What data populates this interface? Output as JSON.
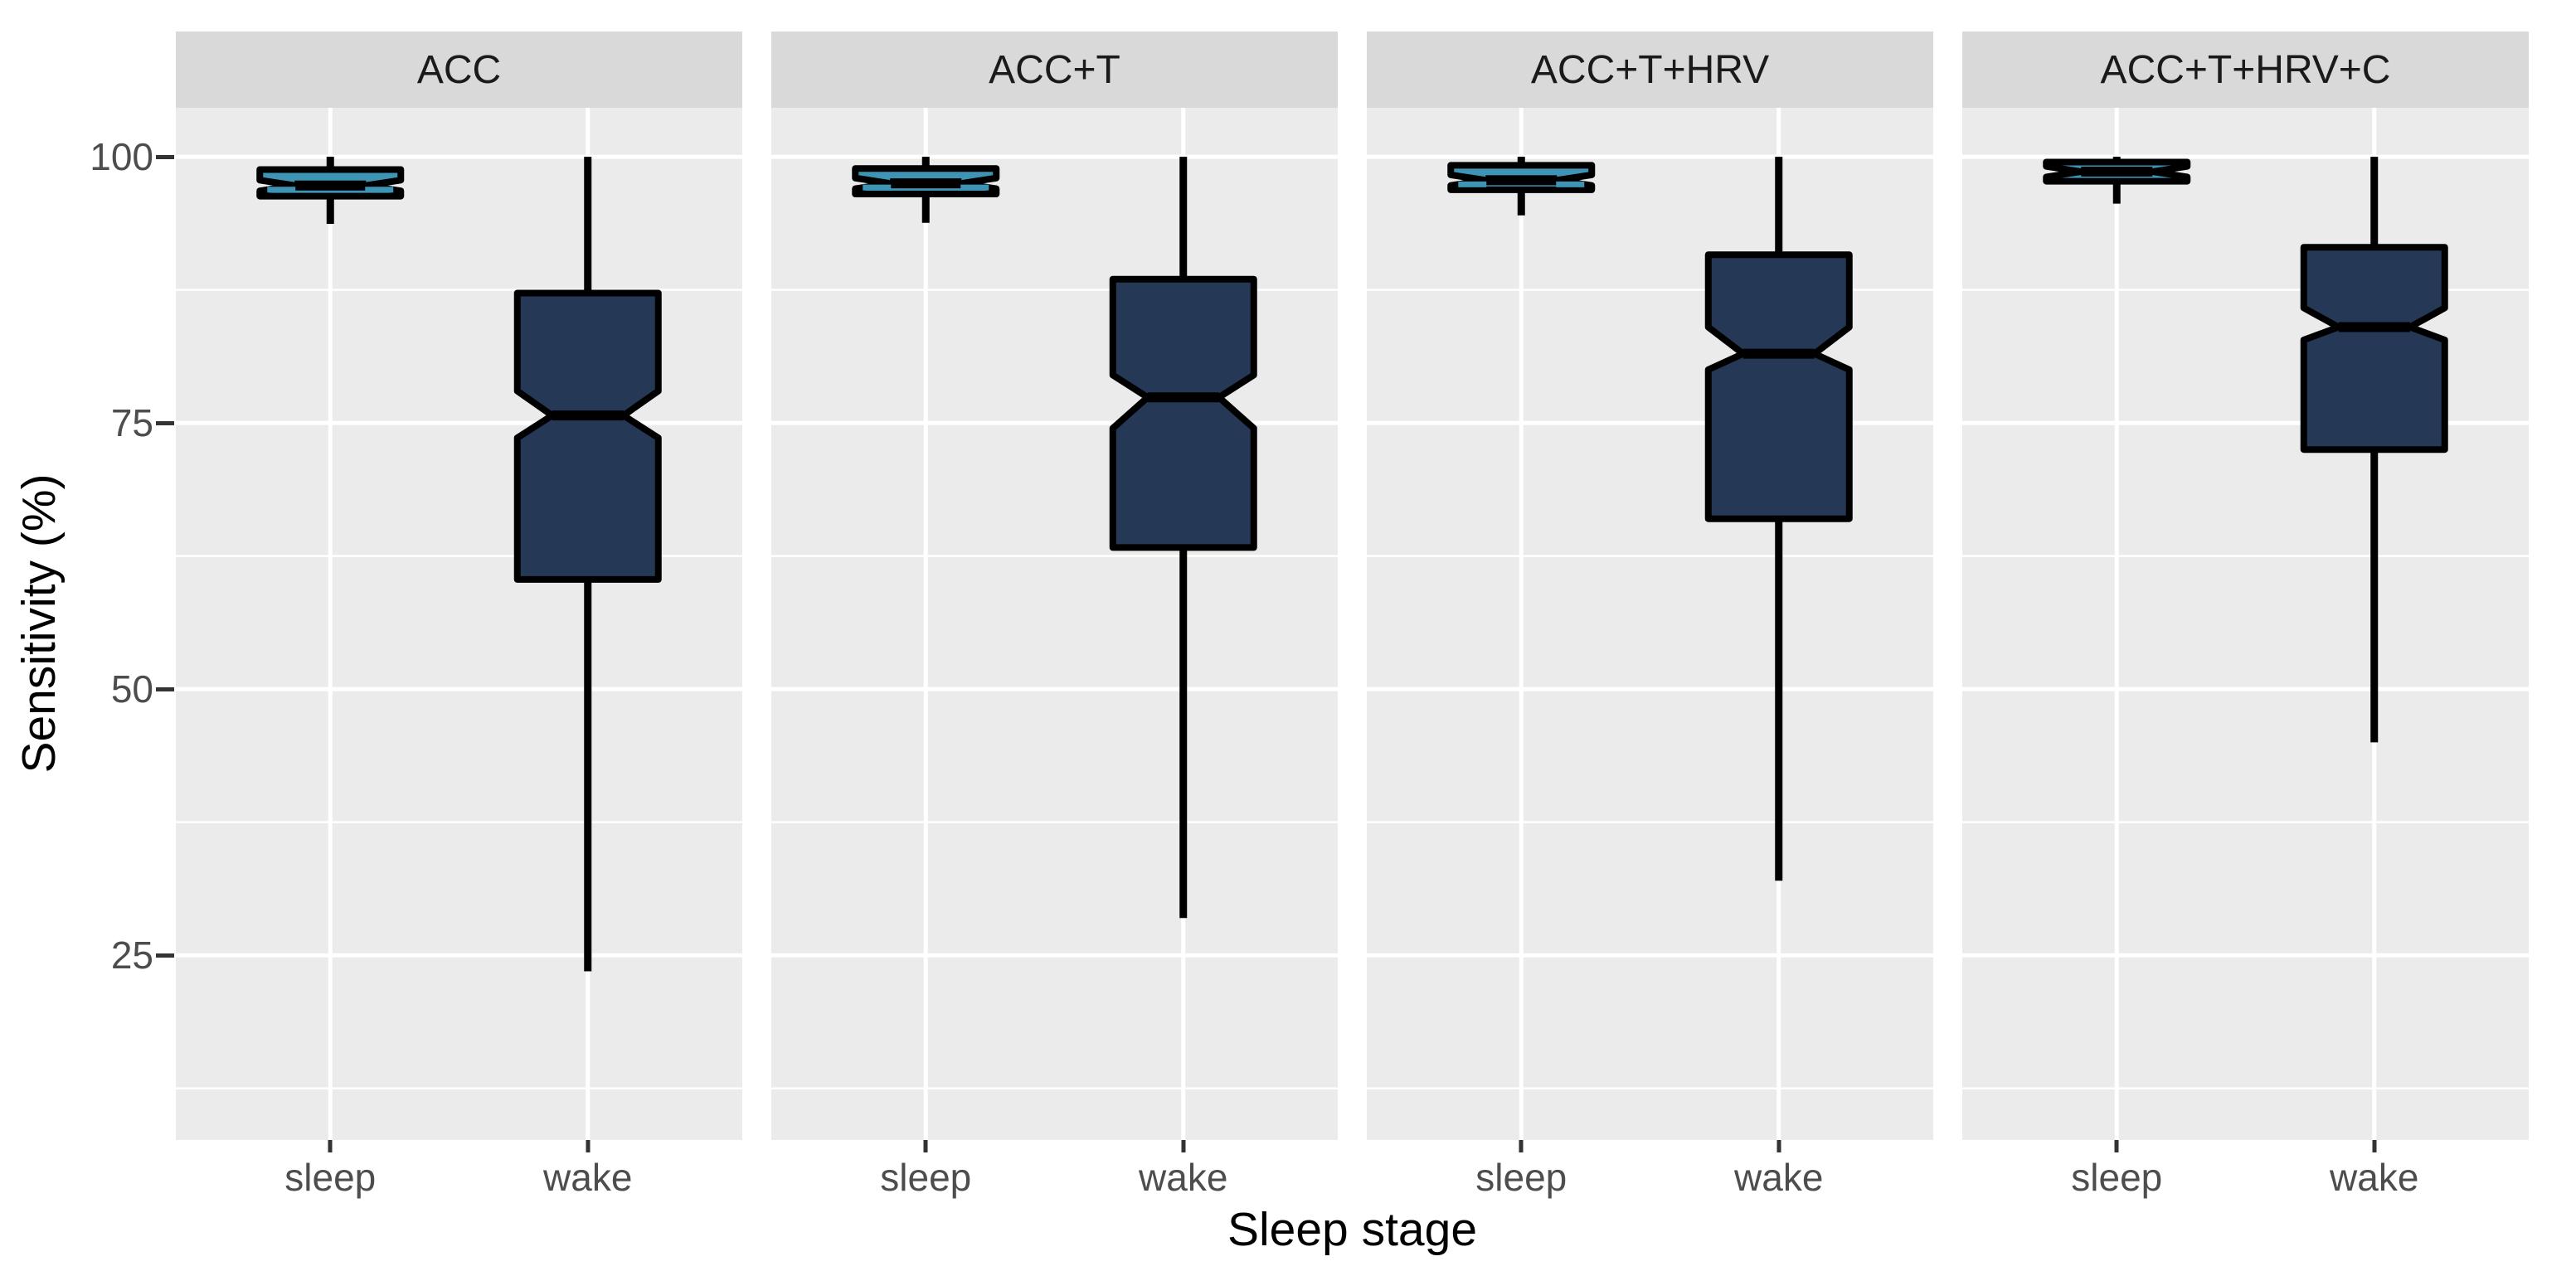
{
  "chart_data": {
    "type": "boxplot",
    "faceted": true,
    "notched": true,
    "legend": "none",
    "title": "",
    "xlabel": "Sleep stage",
    "ylabel": "Sensitivity (%)",
    "facets": [
      "ACC",
      "ACC+T",
      "ACC+T+HRV",
      "ACC+T+HRV+C"
    ],
    "categories": [
      "sleep",
      "wake"
    ],
    "y_ticks": [
      100,
      75,
      50,
      25
    ],
    "y_domain": [
      7.65,
      104.6
    ],
    "grid": {
      "major": [
        25,
        50,
        75,
        100
      ],
      "minor": [
        12.5,
        37.5,
        62.5,
        87.5
      ],
      "grid_on": true
    },
    "category_positions": [
      0.2727,
      0.7273
    ],
    "colors": {
      "sleep_fill": "#3D94B5",
      "wake_fill": "#253856",
      "box_stroke": "#000000",
      "panel_bg": "#EBEBEB",
      "strip_bg": "#D9D9D9",
      "grid_line": "#FFFFFF",
      "tick_text": "#4D4D4D",
      "axis_title_text": "#000000",
      "strip_text": "#1A1A1A",
      "tick_mark": "#333333"
    },
    "facet_data": [
      {
        "facet": "ACC",
        "boxes": [
          {
            "category": "sleep",
            "min": 93.7,
            "q1": 96.3,
            "median": 97.3,
            "q3": 98.8,
            "max": 100,
            "notch_low": 96.8,
            "notch_high": 97.8,
            "fill": "sleep_fill",
            "fill_peek": true
          },
          {
            "category": "wake",
            "min": 23.5,
            "q1": 60.3,
            "median": 75.7,
            "q3": 87.2,
            "max": 100,
            "notch_low": 73.6,
            "notch_high": 78.0,
            "fill": "wake_fill",
            "fill_peek": false
          }
        ]
      },
      {
        "facet": "ACC+T",
        "boxes": [
          {
            "category": "sleep",
            "min": 93.8,
            "q1": 96.5,
            "median": 97.5,
            "q3": 98.9,
            "max": 100,
            "notch_low": 97.0,
            "notch_high": 98.0,
            "fill": "sleep_fill",
            "fill_peek": true
          },
          {
            "category": "wake",
            "min": 28.5,
            "q1": 63.3,
            "median": 77.4,
            "q3": 88.5,
            "max": 100,
            "notch_low": 74.5,
            "notch_high": 79.5,
            "fill": "wake_fill",
            "fill_peek": false
          }
        ]
      },
      {
        "facet": "ACC+T+HRV",
        "boxes": [
          {
            "category": "sleep",
            "min": 94.5,
            "q1": 96.9,
            "median": 97.8,
            "q3": 99.2,
            "max": 100,
            "notch_low": 97.3,
            "notch_high": 98.3,
            "fill": "sleep_fill",
            "fill_peek": true
          },
          {
            "category": "wake",
            "min": 32.0,
            "q1": 66.0,
            "median": 81.5,
            "q3": 90.8,
            "max": 100,
            "notch_low": 80.0,
            "notch_high": 84.0,
            "fill": "wake_fill",
            "fill_peek": false
          }
        ]
      },
      {
        "facet": "ACC+T+HRV+C",
        "boxes": [
          {
            "category": "sleep",
            "min": 95.6,
            "q1": 97.7,
            "median": 98.6,
            "q3": 99.5,
            "max": 100,
            "notch_low": 98.1,
            "notch_high": 99.1,
            "fill": "sleep_fill",
            "fill_peek": false
          },
          {
            "category": "wake",
            "min": 45.0,
            "q1": 72.5,
            "median": 84.0,
            "q3": 91.5,
            "max": 100,
            "notch_low": 82.8,
            "notch_high": 85.8,
            "fill": "wake_fill",
            "fill_peek": false
          }
        ]
      }
    ]
  }
}
